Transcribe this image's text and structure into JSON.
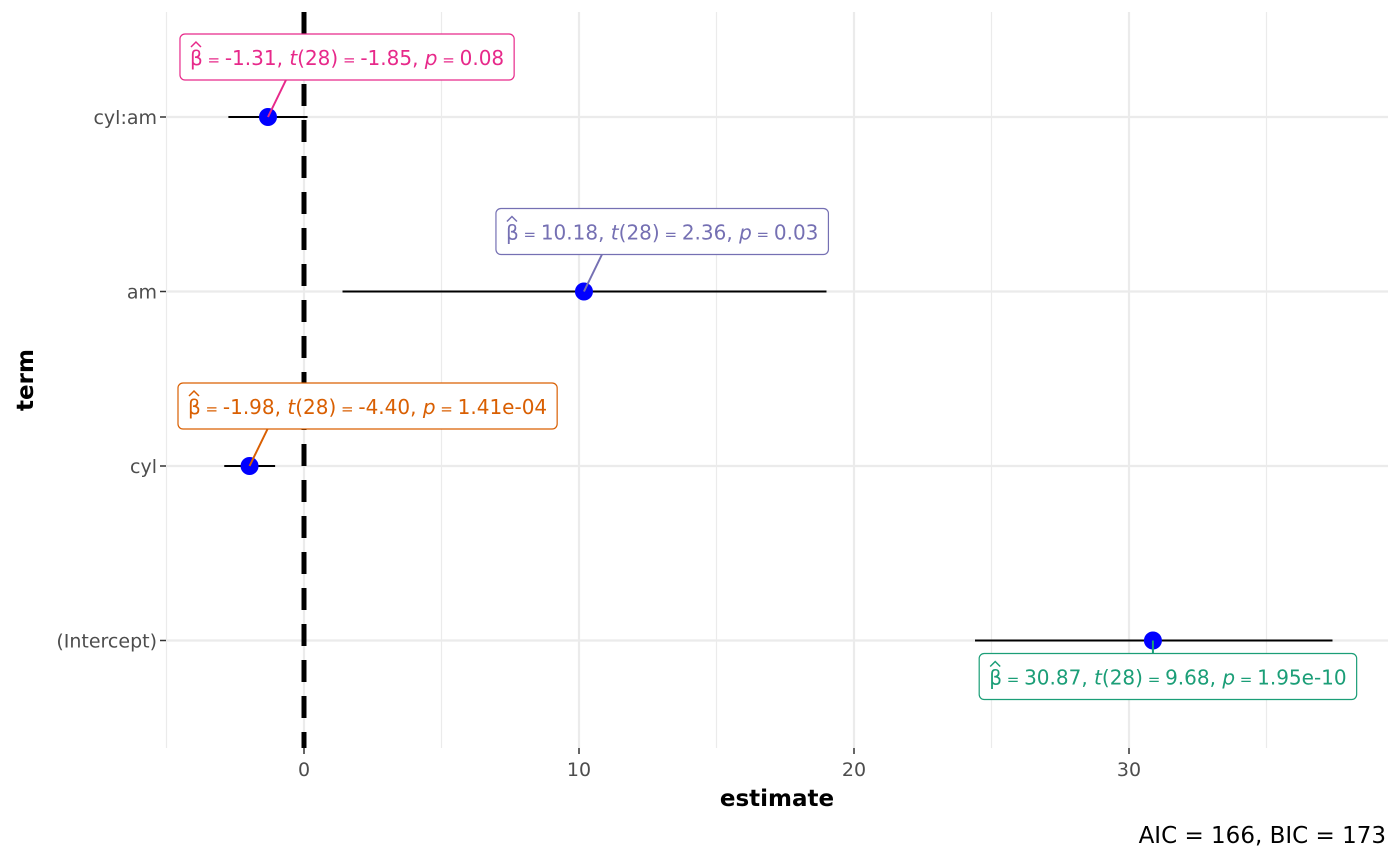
{
  "chart_data": {
    "type": "scatter",
    "xlabel": "estimate",
    "ylabel": "term",
    "xlim": [
      -5.0,
      39.7
    ],
    "x_ticks": [
      0,
      10,
      20,
      30
    ],
    "grid": true,
    "reference_line": {
      "x": 0,
      "style": "dashed"
    },
    "caption": "AIC = 166, BIC = 173",
    "point_color": "#0000ff",
    "terms": [
      {
        "term": "(Intercept)",
        "estimate": 30.87,
        "conf_low": 24.4,
        "conf_high": 37.4,
        "label": {
          "beta": "30.87",
          "df": "28",
          "t": "9.68",
          "p": "1.95e-10"
        },
        "label_color": "#1b9e77"
      },
      {
        "term": "cyl",
        "estimate": -1.98,
        "conf_low": -2.9,
        "conf_high": -1.05,
        "label": {
          "beta": "-1.98",
          "df": "28",
          "t": "-4.40",
          "p": "1.41e-04"
        },
        "label_color": "#d95f02"
      },
      {
        "term": "am",
        "estimate": 10.18,
        "conf_low": 1.4,
        "conf_high": 19.0,
        "label": {
          "beta": "10.18",
          "df": "28",
          "t": "2.36",
          "p": "0.03"
        },
        "label_color": "#7570b3"
      },
      {
        "term": "cyl:am",
        "estimate": -1.31,
        "conf_low": -2.75,
        "conf_high": 0.13,
        "label": {
          "beta": "-1.31",
          "df": "28",
          "t": "-1.85",
          "p": "0.08"
        },
        "label_color": "#e7298a"
      }
    ]
  }
}
